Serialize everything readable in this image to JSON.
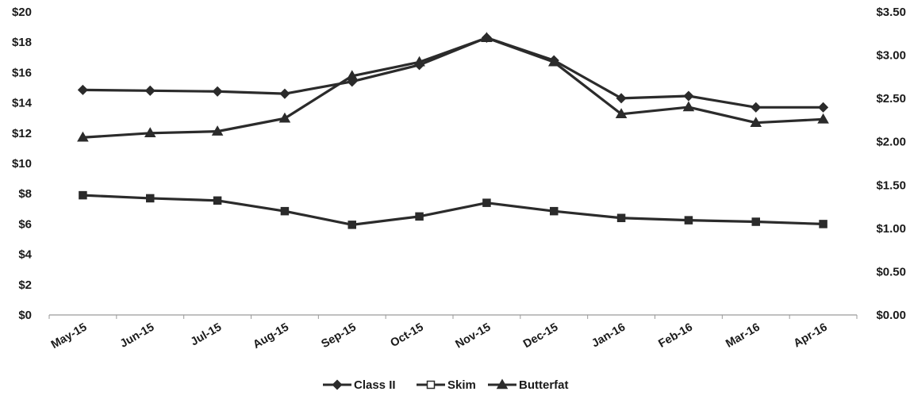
{
  "chart_data": {
    "type": "line",
    "title": "",
    "xlabel": "",
    "ylabel": "",
    "categories": [
      "May-15",
      "Jun-15",
      "Jul-15",
      "Aug-15",
      "Sep-15",
      "Oct-15",
      "Nov-15",
      "Dec-15",
      "Jan-16",
      "Feb-16",
      "Mar-16",
      "Apr-16"
    ],
    "y_left": {
      "ylim": [
        0,
        20
      ],
      "ticks": [
        0,
        2,
        4,
        6,
        8,
        10,
        12,
        14,
        16,
        18,
        20
      ],
      "tick_labels": [
        "$0",
        "$2",
        "$4",
        "$6",
        "$8",
        "$10",
        "$12",
        "$14",
        "$16",
        "$18",
        "$20"
      ]
    },
    "y_right": {
      "ylim": [
        0,
        3.5
      ],
      "ticks": [
        0,
        0.5,
        1.0,
        1.5,
        2.0,
        2.5,
        3.0,
        3.5
      ],
      "tick_labels": [
        "$0.00",
        "$0.50",
        "$1.00",
        "$1.50",
        "$2.00",
        "$2.50",
        "$3.00",
        "$3.50"
      ]
    },
    "series": [
      {
        "name": "Class II",
        "axis": "left",
        "marker": "diamond",
        "values": [
          14.85,
          14.8,
          14.75,
          14.6,
          15.4,
          16.5,
          18.3,
          16.8,
          14.3,
          14.45,
          13.7,
          13.7
        ]
      },
      {
        "name": "Skim",
        "axis": "left",
        "marker": "square",
        "values": [
          7.9,
          7.7,
          7.55,
          6.85,
          5.95,
          6.5,
          7.4,
          6.85,
          6.4,
          6.25,
          6.15,
          6.0
        ]
      },
      {
        "name": "Butterfat",
        "axis": "right",
        "marker": "triangle",
        "values": [
          2.05,
          2.1,
          2.12,
          2.27,
          2.76,
          2.92,
          3.2,
          2.92,
          2.32,
          2.4,
          2.22,
          2.26
        ]
      }
    ],
    "grid": false,
    "legend": {
      "position": "bottom-center",
      "entries": [
        "Class II",
        "Skim",
        "Butterfat"
      ]
    },
    "colors": {
      "line": "#2b2b2b",
      "axis": "#9a9a9a"
    }
  }
}
